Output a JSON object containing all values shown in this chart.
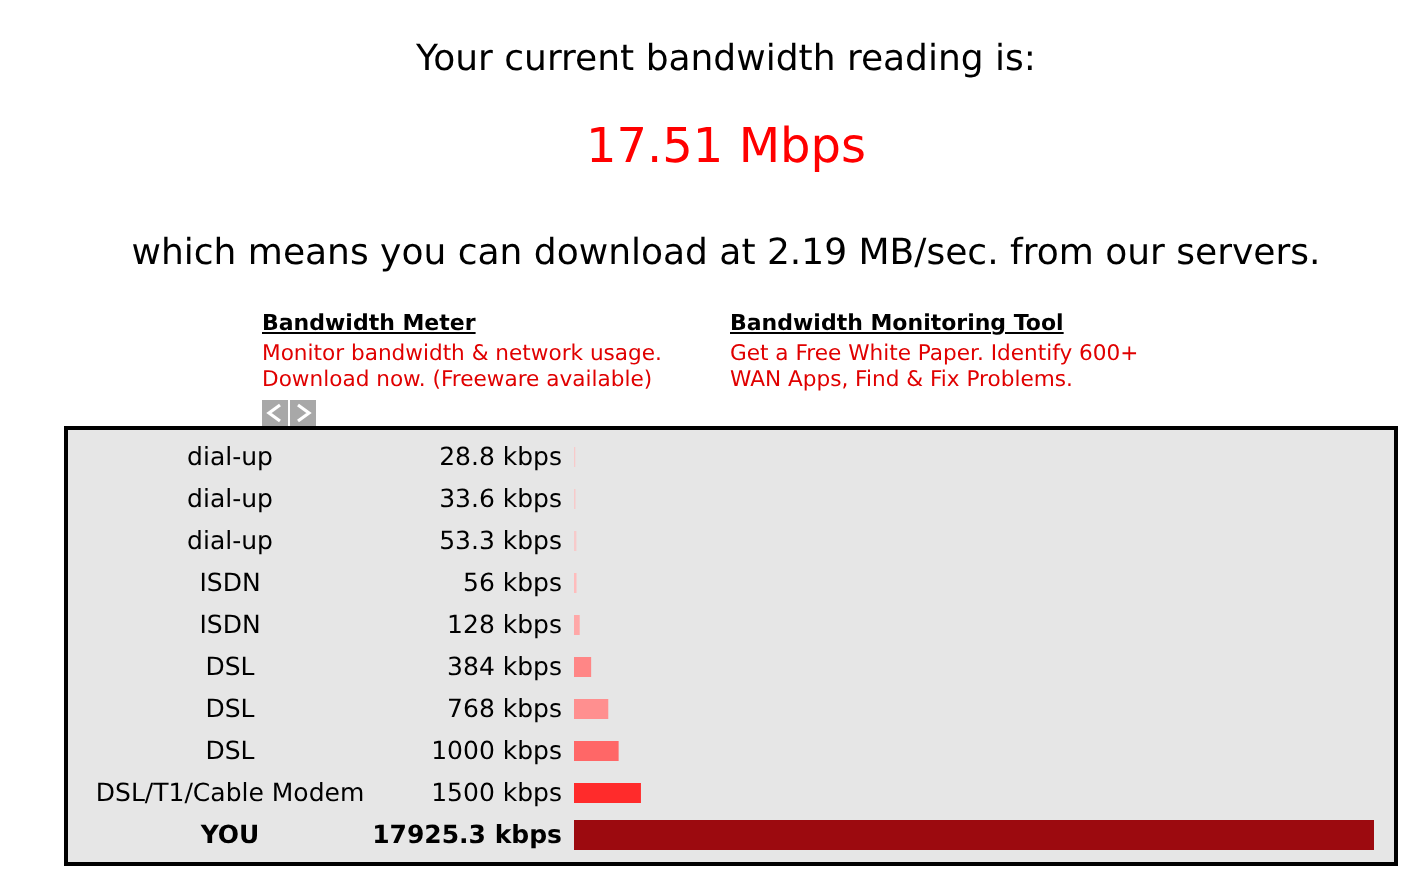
{
  "chart_data": {
    "type": "bar",
    "orientation": "horizontal",
    "title": "Your current bandwidth reading is:",
    "subtitle": "17.51 Mbps",
    "annotations": [
      "which means you can download at 2.19 MB/sec. from our servers.",
      "Bandwidth Meter",
      "Monitor bandwidth & network usage. Download now. (Freeware available)",
      "Bandwidth Monitoring Tool",
      "Get a Free White Paper. Identify 600+ WAN Apps, Find & Fix Problems."
    ],
    "categories": [
      "dial-up",
      "dial-up",
      "dial-up",
      "ISDN",
      "ISDN",
      "DSL",
      "DSL",
      "DSL",
      "DSL/T1/Cable Modem",
      "YOU"
    ],
    "values": [
      28.8,
      33.6,
      53.3,
      56,
      128,
      384,
      768,
      1000,
      1500,
      17925.3
    ],
    "value_labels": [
      "28.8 kbps",
      "33.6 kbps",
      "53.3 kbps",
      "56 kbps",
      "128 kbps",
      "384 kbps",
      "768 kbps",
      "1000 kbps",
      "1500 kbps",
      "17925.3 kbps"
    ],
    "colors": [
      "#f7caca",
      "#f7caca",
      "#f7caca",
      "#ffbcbc",
      "#ffa8a8",
      "#ff8686",
      "#ff8f8f",
      "#ff6767",
      "#ff2b2b",
      "#9c0a0f"
    ]
  }
}
